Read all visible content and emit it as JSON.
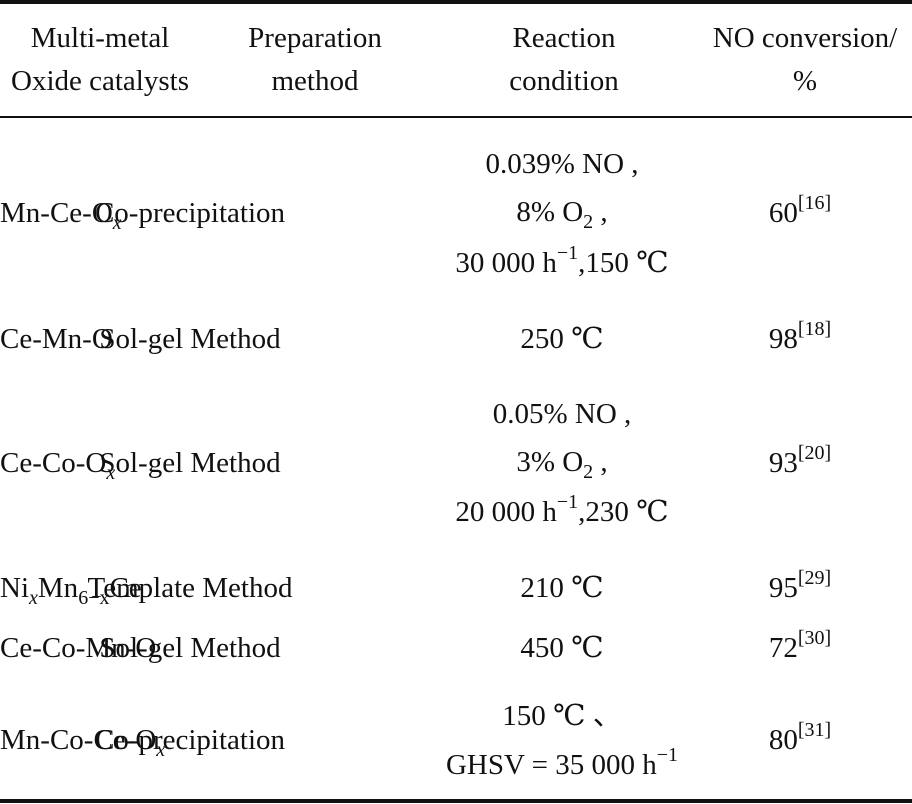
{
  "table": {
    "headers": {
      "catalyst": [
        "Multi-metal",
        "Oxide catalysts"
      ],
      "method": [
        "Preparation",
        "method"
      ],
      "condition": [
        "Reaction",
        "condition"
      ],
      "conversion": [
        "NO conversion/",
        "%"
      ]
    },
    "rows": [
      {
        "catalyst": {
          "text": "Mn-Ce-O",
          "sub": "x"
        },
        "method": "Co-precipitation",
        "condition": [
          "0.039% NO ,",
          "8% O",
          "30 000 h",
          ",150 ℃"
        ],
        "conversion": "60",
        "ref": "[16]"
      },
      {
        "catalyst": {
          "text": "Ce-Mn-O"
        },
        "method": "Sol-gel Method",
        "condition": [
          "250 ℃"
        ],
        "conversion": "98",
        "ref": "[18]"
      },
      {
        "catalyst": {
          "text": "Ce-Co-O",
          "sub": "x"
        },
        "method": "Sol-gel Method",
        "condition": [
          "0.05% NO ,",
          "3% O",
          "20 000 h",
          ",230 ℃"
        ],
        "conversion": "93",
        "ref": "[20]"
      },
      {
        "catalyst": {
          "text": "Ni",
          "sub": "x",
          "text2": "Mn",
          "sub2": "6−x",
          "text3": "Ce"
        },
        "method": "Template Method",
        "condition": [
          "210 ℃"
        ],
        "conversion": "95",
        "ref": "[29]"
      },
      {
        "catalyst": {
          "text": "Ce-Co-Mn-O"
        },
        "method": "Sol-gel Method",
        "condition": [
          "450 ℃"
        ],
        "conversion": "72",
        "ref": "[30]"
      },
      {
        "catalyst": {
          "text": "Mn-Co-Ce-O",
          "sub": "x"
        },
        "method": "Co-precipitation",
        "condition": [
          "150 ℃ 、",
          "GHSV = 35 000 h"
        ],
        "conversion": "80",
        "ref": "[31]"
      }
    ],
    "o2_sub": "2",
    "o2_comma": " ,",
    "h_sup": "−1"
  }
}
